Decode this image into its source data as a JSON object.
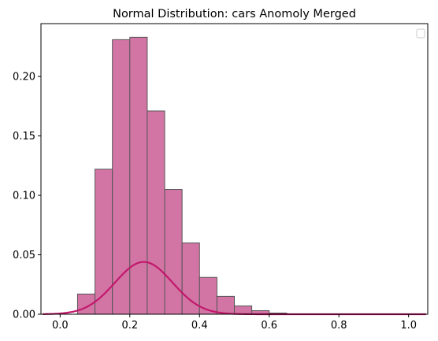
{
  "chart_data": {
    "type": "bar",
    "title": "Normal Distribution: cars Anomoly Merged",
    "xlabel": "",
    "ylabel": "",
    "xlim": [
      -0.055,
      1.055
    ],
    "ylim": [
      0,
      0.2445
    ],
    "x_ticks": [
      0.0,
      0.2,
      0.4,
      0.6,
      0.8,
      1.0
    ],
    "x_tick_labels": [
      "0.0",
      "0.2",
      "0.4",
      "0.6",
      "0.8",
      "1.0"
    ],
    "y_ticks": [
      0.0,
      0.05,
      0.1,
      0.15,
      0.2
    ],
    "y_tick_labels": [
      "0.00",
      "0.05",
      "0.10",
      "0.15",
      "0.20"
    ],
    "grid": false,
    "legend": "top-right (empty)",
    "histogram": {
      "bin_width": 0.05,
      "bin_edges": [
        0.05,
        0.1,
        0.15,
        0.2,
        0.25,
        0.3,
        0.35,
        0.4,
        0.45,
        0.5,
        0.55,
        0.6,
        0.65
      ],
      "values": [
        0.017,
        0.122,
        0.231,
        0.233,
        0.171,
        0.105,
        0.06,
        0.031,
        0.015,
        0.007,
        0.003,
        0.001
      ],
      "fill_color": "#d275a5",
      "edge_color": "#555555"
    },
    "curve": {
      "type": "normal-pdf",
      "mean": 0.24,
      "std": 0.0825,
      "peak": 0.044,
      "x_range": [
        -0.05,
        1.05
      ],
      "color": "#c2186b"
    }
  }
}
